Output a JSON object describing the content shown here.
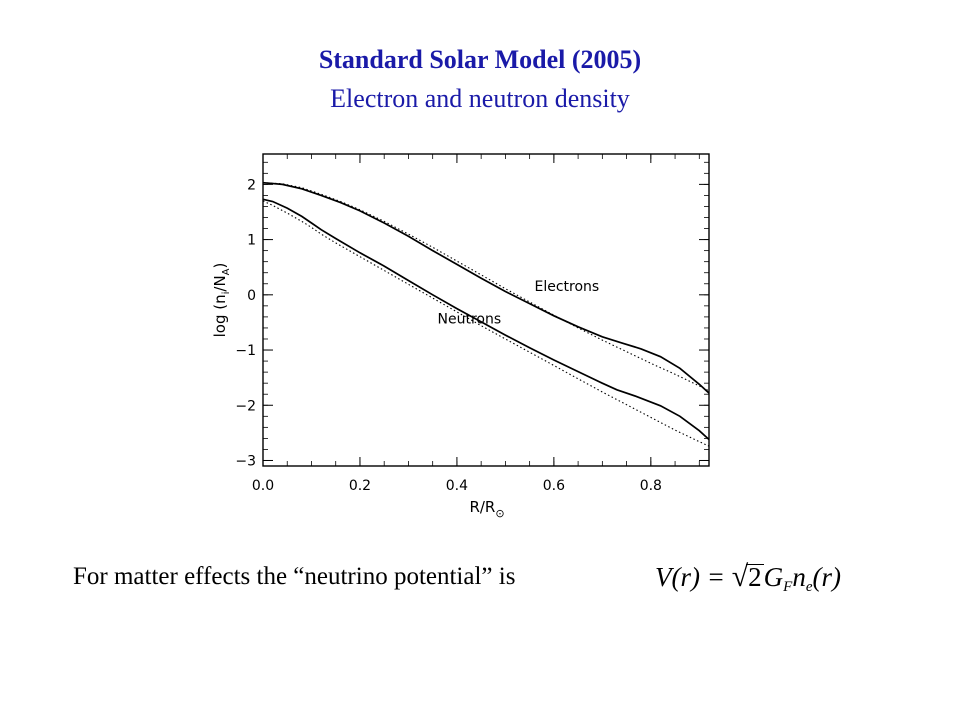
{
  "slide": {
    "title": "Standard Solar Model (2005)",
    "subtitle": "Electron and neutron density",
    "caption": "For matter effects the “neutrino potential” is",
    "formula": {
      "lhs": "V(r) =",
      "sqrt_arg": "2",
      "g": "G",
      "g_sub": "F",
      "n": "n",
      "n_sub": "e",
      "arg": "(r)"
    }
  },
  "chart_data": {
    "type": "line",
    "title": "",
    "xlabel": "R/R",
    "xlabel_subscript": "⊙",
    "ylabel": "log (n",
    "ylabel_sub_i": "i",
    "ylabel_mid": "/N",
    "ylabel_sub_A": "A",
    "ylabel_end": ")",
    "xlim": [
      0.0,
      0.92
    ],
    "ylim": [
      -3.1,
      2.55
    ],
    "xticks": [
      0.0,
      0.2,
      0.4,
      0.6,
      0.8
    ],
    "xtick_labels": [
      "0.0",
      "0.2",
      "0.4",
      "0.6",
      "0.8"
    ],
    "yticks": [
      2,
      1,
      0,
      -1,
      -2,
      -3
    ],
    "ytick_labels": [
      "2",
      "1",
      "0",
      "−1",
      "−2",
      "−3"
    ],
    "grid": false,
    "annotations": [
      {
        "text": "Electrons",
        "x": 0.56,
        "y": 0.07
      },
      {
        "text": "Neutrons",
        "x": 0.36,
        "y": -0.52
      }
    ],
    "series": [
      {
        "style": "solid",
        "x": [
          0.0,
          0.04,
          0.08,
          0.12,
          0.16,
          0.2,
          0.25,
          0.3,
          0.35,
          0.4,
          0.45,
          0.5,
          0.55,
          0.6,
          0.65,
          0.7,
          0.74,
          0.78,
          0.82,
          0.86,
          0.9,
          0.92
        ],
        "y": [
          2.03,
          2.0,
          1.92,
          1.8,
          1.67,
          1.52,
          1.3,
          1.06,
          0.8,
          0.55,
          0.3,
          0.06,
          -0.16,
          -0.38,
          -0.58,
          -0.76,
          -0.87,
          -0.98,
          -1.12,
          -1.33,
          -1.62,
          -1.78
        ]
      },
      {
        "style": "dotted",
        "x": [
          0.0,
          0.04,
          0.08,
          0.12,
          0.16,
          0.2,
          0.25,
          0.3,
          0.35,
          0.4,
          0.45,
          0.5,
          0.55,
          0.6,
          0.65,
          0.7,
          0.75,
          0.8,
          0.85,
          0.9,
          0.92
        ],
        "y": [
          2.03,
          2.01,
          1.94,
          1.82,
          1.69,
          1.54,
          1.33,
          1.1,
          0.86,
          0.61,
          0.36,
          0.11,
          -0.13,
          -0.37,
          -0.6,
          -0.82,
          -1.03,
          -1.24,
          -1.44,
          -1.65,
          -1.74
        ]
      },
      {
        "style": "solid",
        "x": [
          0.0,
          0.02,
          0.05,
          0.08,
          0.1,
          0.12,
          0.15,
          0.2,
          0.25,
          0.3,
          0.35,
          0.4,
          0.45,
          0.5,
          0.55,
          0.6,
          0.65,
          0.7,
          0.73,
          0.77,
          0.82,
          0.86,
          0.9,
          0.92
        ],
        "y": [
          1.73,
          1.69,
          1.57,
          1.42,
          1.3,
          1.18,
          1.02,
          0.76,
          0.52,
          0.26,
          0.0,
          -0.25,
          -0.49,
          -0.73,
          -0.96,
          -1.18,
          -1.39,
          -1.6,
          -1.72,
          -1.84,
          -2.01,
          -2.2,
          -2.46,
          -2.62
        ]
      },
      {
        "style": "dotted",
        "x": [
          0.0,
          0.02,
          0.05,
          0.08,
          0.1,
          0.12,
          0.15,
          0.2,
          0.25,
          0.3,
          0.35,
          0.4,
          0.45,
          0.5,
          0.55,
          0.6,
          0.65,
          0.7,
          0.75,
          0.8,
          0.85,
          0.9,
          0.92
        ],
        "y": [
          1.7,
          1.62,
          1.48,
          1.33,
          1.22,
          1.1,
          0.94,
          0.69,
          0.44,
          0.19,
          -0.06,
          -0.31,
          -0.56,
          -0.8,
          -1.04,
          -1.28,
          -1.52,
          -1.76,
          -1.99,
          -2.22,
          -2.45,
          -2.66,
          -2.74
        ]
      }
    ]
  }
}
